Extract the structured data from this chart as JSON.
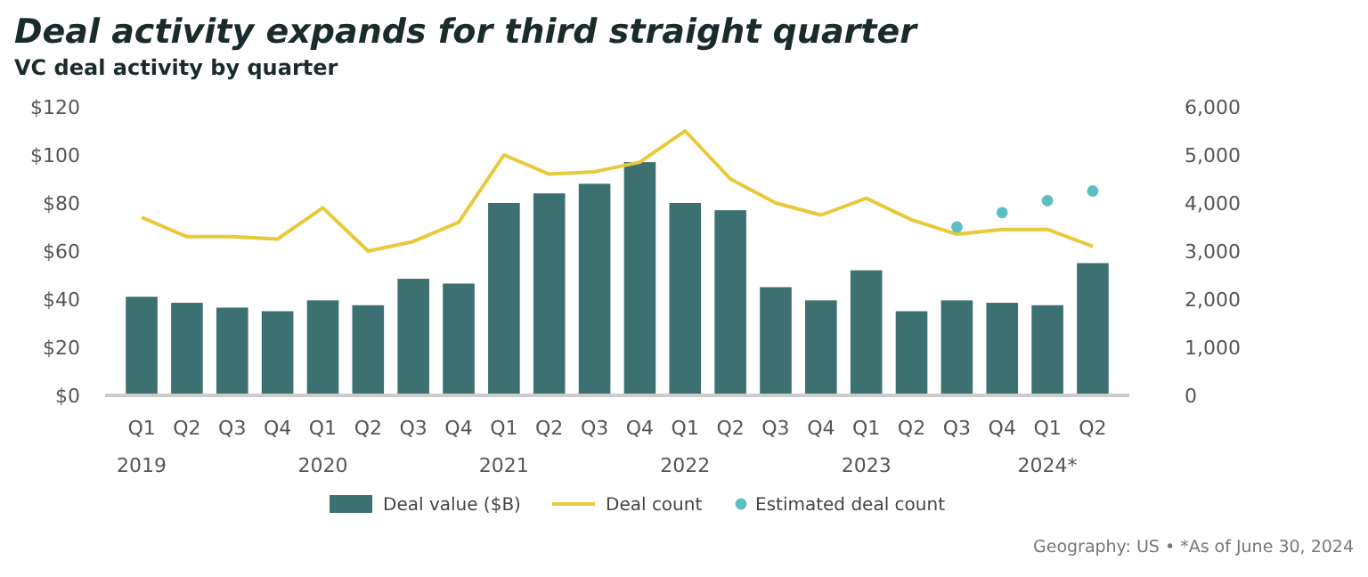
{
  "chart_data": {
    "type": "bar",
    "title": "Deal activity expands for third straight quarter",
    "subtitle": "VC deal activity by quarter",
    "categories": [
      "Q1\n2019",
      "Q2",
      "Q3",
      "Q4",
      "Q1\n2020",
      "Q2",
      "Q3",
      "Q4",
      "Q1\n2021",
      "Q2",
      "Q3",
      "Q4",
      "Q1\n2022",
      "Q2",
      "Q3",
      "Q4",
      "Q1\n2023",
      "Q2",
      "Q3",
      "Q4",
      "Q1\n2024*",
      "Q2"
    ],
    "series": [
      {
        "name": "Deal value ($B)",
        "color": "#3d7070",
        "values": [
          41,
          38.5,
          36.5,
          35,
          39.5,
          37.5,
          48.5,
          46.5,
          80,
          84,
          88,
          97,
          80,
          77,
          45,
          39.5,
          52,
          35,
          39.5,
          38.5,
          37.5,
          55
        ]
      },
      {
        "name": "Deal count",
        "type": "line",
        "axis": "y2",
        "color": "#e8c93a",
        "values": [
          3700,
          3300,
          3300,
          3250,
          3900,
          3000,
          3200,
          3600,
          5000,
          4600,
          4650,
          4850,
          5500,
          4500,
          4000,
          3750,
          4100,
          3650,
          3350,
          3450,
          3450,
          3100
        ]
      },
      {
        "name": "Estimated deal count",
        "type": "scatter",
        "marker": "circle",
        "axis": "y2",
        "color": "#5bbfc4",
        "values": [
          null,
          null,
          null,
          null,
          null,
          null,
          null,
          null,
          null,
          null,
          null,
          null,
          null,
          null,
          null,
          null,
          null,
          null,
          3500,
          3800,
          4050,
          4250
        ]
      }
    ],
    "ylim": [
      0,
      120
    ],
    "yticks": [
      {
        "value": 0,
        "label": "$0"
      },
      {
        "value": 20,
        "label": "$20"
      },
      {
        "value": 40,
        "label": "$40"
      },
      {
        "value": 60,
        "label": "$60"
      },
      {
        "value": 80,
        "label": "$80"
      },
      {
        "value": 100,
        "label": "$100"
      },
      {
        "value": 120,
        "label": "$120"
      }
    ],
    "y2lim": [
      0,
      6000
    ],
    "y2ticks": [
      {
        "value": 0,
        "label": "0"
      },
      {
        "value": 1000,
        "label": "1,000"
      },
      {
        "value": 2000,
        "label": "2,000"
      },
      {
        "value": 3000,
        "label": "3,000"
      },
      {
        "value": 4000,
        "label": "4,000"
      },
      {
        "value": 5000,
        "label": "5,000"
      },
      {
        "value": 6000,
        "label": "6,000"
      }
    ],
    "legend": "bottom",
    "annotations": [
      "Geography: US • *As of June 30, 2024"
    ]
  }
}
